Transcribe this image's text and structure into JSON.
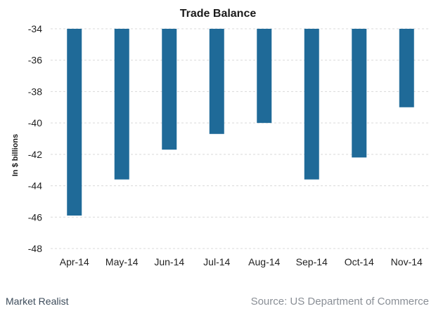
{
  "chart_data": {
    "type": "bar",
    "title": "Trade Balance",
    "ylabel": "In $ billions",
    "xlabel": "",
    "categories": [
      "Apr-14",
      "May-14",
      "Jun-14",
      "Jul-14",
      "Aug-14",
      "Sep-14",
      "Oct-14",
      "Nov-14"
    ],
    "values": [
      -45.9,
      -43.6,
      -41.7,
      -40.7,
      -40.0,
      -43.6,
      -42.2,
      -39.0
    ],
    "ylim": [
      -48,
      -34
    ],
    "yticks": [
      "-34",
      "-36",
      "-38",
      "-40",
      "-42",
      "-44",
      "-46",
      "-48"
    ],
    "grid": true,
    "legend": "none",
    "bar_color": "#1f6a98"
  },
  "footer": {
    "brand": "Market Realist",
    "source": "Source: US Department of Commerce"
  }
}
